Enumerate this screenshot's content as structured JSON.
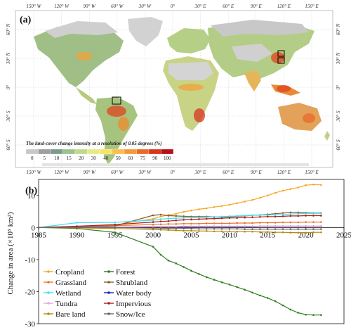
{
  "map_panel": {
    "panel_label": "(a)",
    "lon_labels": [
      "150° W",
      "120° W",
      "90° W",
      "60° W",
      "30° W",
      "0°",
      "30° E",
      "60° E",
      "90° E",
      "120° E",
      "150° E"
    ],
    "lat_labels": [
      "60° N",
      "30° N",
      "0°",
      "30° S",
      "60° S"
    ],
    "colorbar": {
      "title": "The land-cover change intensity at a resolution of 0.05 degrees (%)",
      "ticks": [
        "0",
        "5",
        "10",
        "15",
        "20",
        "30",
        "40",
        "50",
        "60",
        "75",
        "90",
        "100"
      ],
      "colors": [
        "#c8c8c8",
        "#9e9e9e",
        "#7a9d8a",
        "#9cc38f",
        "#c2d98c",
        "#e6ea86",
        "#f5e46a",
        "#f7c14f",
        "#f29a3a",
        "#ea6a2a",
        "#d7361f",
        "#b5121b"
      ]
    }
  },
  "chart_data": {
    "type": "line",
    "panel_label": "(b)",
    "title": "",
    "xlabel": "",
    "ylabel": "Change in area (×10⁵ km²)",
    "xlim": [
      1985,
      2025
    ],
    "ylim": [
      -30,
      15
    ],
    "xticks": [
      1985,
      1990,
      1995,
      2000,
      2005,
      2010,
      2015,
      2020,
      2025
    ],
    "yticks": [
      -30,
      -20,
      -10,
      0,
      10
    ],
    "x": [
      1985,
      1990,
      1995,
      2000,
      2001,
      2002,
      2003,
      2004,
      2005,
      2006,
      2007,
      2008,
      2009,
      2010,
      2011,
      2012,
      2013,
      2014,
      2015,
      2016,
      2017,
      2018,
      2019,
      2020,
      2021,
      2022
    ],
    "series": [
      {
        "name": "Cropland",
        "color": "#f5a623",
        "values": [
          0,
          0.3,
          0.8,
          2.7,
          3.4,
          3.9,
          4.3,
          4.9,
          5.3,
          5.7,
          6.0,
          6.4,
          6.7,
          7.1,
          7.6,
          8.1,
          8.6,
          9.3,
          10.0,
          10.8,
          11.5,
          12.0,
          12.5,
          13.2,
          13.4,
          13.3
        ]
      },
      {
        "name": "Forest",
        "color": "#2e7d1f",
        "values": [
          0,
          -0.3,
          -1.5,
          -6.0,
          -8.5,
          -10.3,
          -11.2,
          -12.3,
          -13.5,
          -14.5,
          -15.5,
          -16.3,
          -17.1,
          -17.8,
          -18.6,
          -19.4,
          -20.3,
          -21.2,
          -22.0,
          -23.0,
          -24.3,
          -25.6,
          -26.6,
          -27.2,
          -27.3,
          -27.3
        ]
      },
      {
        "name": "Grassland",
        "color": "#e8762d",
        "values": [
          0,
          0.3,
          0.6,
          0.9,
          1.0,
          1.1,
          1.1,
          1.2,
          1.2,
          1.2,
          1.3,
          1.3,
          1.3,
          1.3,
          1.4,
          1.4,
          1.4,
          1.5,
          1.5,
          1.5,
          1.6,
          1.6,
          1.6,
          1.7,
          1.7,
          1.7
        ]
      },
      {
        "name": "Shrubland",
        "color": "#8b5a2b",
        "values": [
          0,
          0.2,
          0.5,
          3.8,
          4.0,
          3.7,
          3.6,
          3.5,
          3.4,
          3.4,
          3.4,
          3.3,
          3.3,
          3.3,
          3.5,
          3.6,
          3.8,
          3.9,
          4.1,
          4.3,
          4.5,
          4.7,
          4.7,
          4.6,
          4.5,
          4.5
        ]
      },
      {
        "name": "Wetland",
        "color": "#3fe0f0",
        "values": [
          0,
          1.5,
          1.6,
          2.3,
          2.6,
          2.8,
          2.9,
          3.0,
          3.1,
          3.1,
          3.2,
          3.3,
          3.4,
          3.5,
          3.6,
          3.7,
          3.8,
          3.9,
          3.9,
          4.0,
          4.1,
          4.2,
          4.3,
          4.4,
          4.4,
          4.4
        ]
      },
      {
        "name": "Water body",
        "color": "#1f1fbf",
        "values": [
          0,
          0.1,
          0.1,
          0.2,
          0.2,
          0.2,
          0.2,
          0.2,
          0.3,
          0.3,
          0.3,
          0.3,
          0.3,
          0.3,
          0.3,
          0.3,
          0.3,
          0.4,
          0.4,
          0.4,
          0.4,
          0.4,
          0.4,
          0.4,
          0.4,
          0.4
        ]
      },
      {
        "name": "Tundra",
        "color": "#e9a3dc",
        "values": [
          0,
          0.1,
          0.2,
          0.3,
          0.3,
          0.3,
          0.3,
          0.4,
          0.4,
          0.4,
          0.4,
          0.4,
          0.4,
          0.4,
          0.4,
          0.4,
          0.4,
          0.4,
          0.4,
          0.4,
          0.4,
          0.4,
          0.4,
          0.4,
          0.4,
          0.4
        ]
      },
      {
        "name": "Impervious",
        "color": "#b01c1c",
        "values": [
          0,
          0.4,
          0.9,
          1.7,
          1.9,
          2.0,
          2.2,
          2.4,
          2.5,
          2.6,
          2.7,
          2.8,
          2.9,
          3.0,
          3.0,
          3.1,
          3.2,
          3.3,
          3.4,
          3.4,
          3.5,
          3.6,
          3.6,
          3.7,
          3.7,
          3.7
        ]
      },
      {
        "name": "Bare land",
        "color": "#b8860b",
        "values": [
          0,
          -0.1,
          -0.3,
          -0.6,
          -0.7,
          -0.8,
          -0.9,
          -1.0,
          -1.0,
          -1.1,
          -1.1,
          -1.2,
          -1.2,
          -1.2,
          -1.3,
          -1.3,
          -1.3,
          -1.4,
          -1.4,
          -1.5,
          -1.5,
          -1.6,
          -1.6,
          -1.6,
          -1.5,
          -1.5
        ]
      },
      {
        "name": "Snow/Ice",
        "color": "#666666",
        "values": [
          0,
          0.0,
          0.0,
          -0.2,
          -0.2,
          -0.3,
          -0.3,
          -0.3,
          -0.3,
          -0.4,
          -0.4,
          -0.4,
          -0.4,
          -0.4,
          -0.4,
          -0.5,
          -0.5,
          -0.5,
          -0.5,
          -0.5,
          -0.5,
          -0.5,
          -0.5,
          -0.5,
          -0.5,
          -0.5
        ]
      }
    ],
    "grid": false,
    "legend_position": "bottom-left"
  }
}
